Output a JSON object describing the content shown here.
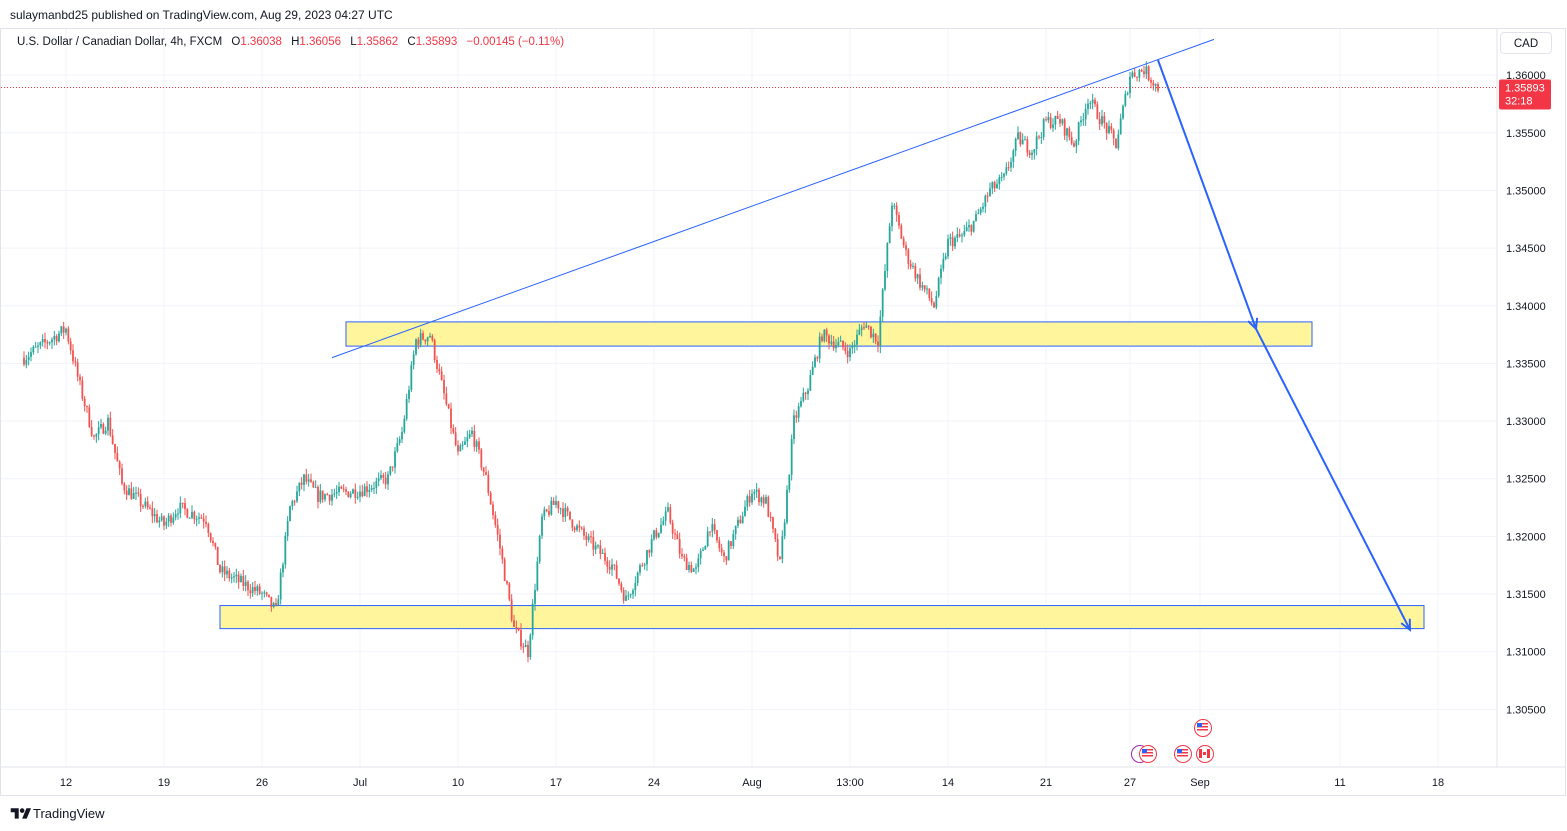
{
  "header": {
    "published": "sulaymanbd25 published on TradingView.com, Aug 29, 2023 04:27 UTC"
  },
  "legend": {
    "symbol": "U.S. Dollar / Canadian Dollar, 4h, FXCM",
    "o_label": "O",
    "o_value": "1.36038",
    "h_label": "H",
    "h_value": "1.36056",
    "l_label": "L",
    "l_value": "1.35862",
    "c_label": "C",
    "c_value": "1.35893",
    "change": "−0.00145 (−0.11%)"
  },
  "currency": "CAD",
  "footer": {
    "brand": "TradingView"
  },
  "colors": {
    "up": "#26a69a",
    "down": "#ef5350",
    "accent": "#2962ff",
    "zone_fill": "#fff59d",
    "last_price_bg": "#f23645"
  },
  "chart_data": {
    "type": "candlestick",
    "title": "U.S. Dollar / Canadian Dollar, 4h, FXCM",
    "ylim": [
      1.3,
      1.364
    ],
    "y_ticks": [
      "1.36000",
      "1.35500",
      "1.35000",
      "1.34500",
      "1.34000",
      "1.33500",
      "1.33000",
      "1.32500",
      "1.32000",
      "1.31500",
      "1.31000",
      "1.30500"
    ],
    "x_ticks": [
      "12",
      "19",
      "26",
      "Jul",
      "10",
      "17",
      "24",
      "Aug",
      "13:00",
      "14",
      "21",
      "27",
      "Sep",
      "11",
      "18"
    ],
    "x_axis_start": "2023-06-08",
    "last_price": {
      "value": "1.35893",
      "countdown": "32:18"
    },
    "close_path": [
      [
        "2023-06-09",
        1.3355
      ],
      [
        "2023-06-12",
        1.338
      ],
      [
        "2023-06-13",
        1.333
      ],
      [
        "2023-06-14",
        1.3285
      ],
      [
        "2023-06-15",
        1.33
      ],
      [
        "2023-06-16",
        1.3245
      ],
      [
        "2023-06-19",
        1.321
      ],
      [
        "2023-06-20",
        1.3225
      ],
      [
        "2023-06-22",
        1.3215
      ],
      [
        "2023-06-23",
        1.317
      ],
      [
        "2023-06-26",
        1.315
      ],
      [
        "2023-06-27",
        1.3135
      ],
      [
        "2023-06-28",
        1.3225
      ],
      [
        "2023-06-29",
        1.325
      ],
      [
        "2023-06-30",
        1.3235
      ],
      [
        "2023-07-03",
        1.324
      ],
      [
        "2023-07-05",
        1.325
      ],
      [
        "2023-07-06",
        1.329
      ],
      [
        "2023-07-07",
        1.337
      ],
      [
        "2023-07-08",
        1.3375
      ],
      [
        "2023-07-10",
        1.327
      ],
      [
        "2023-07-11",
        1.329
      ],
      [
        "2023-07-12",
        1.325
      ],
      [
        "2023-07-13",
        1.319
      ],
      [
        "2023-07-14",
        1.312
      ],
      [
        "2023-07-15",
        1.31
      ],
      [
        "2023-07-16",
        1.3215
      ],
      [
        "2023-07-17",
        1.323
      ],
      [
        "2023-07-19",
        1.32
      ],
      [
        "2023-07-21",
        1.3175
      ],
      [
        "2023-07-22",
        1.3145
      ],
      [
        "2023-07-24",
        1.32
      ],
      [
        "2023-07-25",
        1.322
      ],
      [
        "2023-07-26",
        1.318
      ],
      [
        "2023-07-27",
        1.317
      ],
      [
        "2023-07-28",
        1.321
      ],
      [
        "2023-07-29",
        1.318
      ],
      [
        "2023-07-31",
        1.324
      ],
      [
        "2023-08-01",
        1.323
      ],
      [
        "2023-08-02",
        1.3175
      ],
      [
        "2023-08-03",
        1.33
      ],
      [
        "2023-08-04",
        1.333
      ],
      [
        "2023-08-05",
        1.3375
      ],
      [
        "2023-08-07",
        1.336
      ],
      [
        "2023-08-08",
        1.3385
      ],
      [
        "2023-08-09",
        1.337
      ],
      [
        "2023-08-10",
        1.349
      ],
      [
        "2023-08-11",
        1.3445
      ],
      [
        "2023-08-12",
        1.342
      ],
      [
        "2023-08-13",
        1.34
      ],
      [
        "2023-08-14",
        1.3455
      ],
      [
        "2023-08-15",
        1.346
      ],
      [
        "2023-08-16",
        1.3475
      ],
      [
        "2023-08-17",
        1.35
      ],
      [
        "2023-08-18",
        1.351
      ],
      [
        "2023-08-19",
        1.3545
      ],
      [
        "2023-08-20",
        1.3535
      ],
      [
        "2023-08-21",
        1.356
      ],
      [
        "2023-08-22",
        1.356
      ],
      [
        "2023-08-23",
        1.354
      ],
      [
        "2023-08-24",
        1.358
      ],
      [
        "2023-08-25",
        1.356
      ],
      [
        "2023-08-26",
        1.354
      ],
      [
        "2023-08-27",
        1.36
      ],
      [
        "2023-08-28",
        1.3605
      ],
      [
        "2023-08-29",
        1.3589
      ]
    ],
    "trend_line": [
      [
        "2023-07-01",
        1.3355
      ],
      [
        "2023-09-02",
        1.3631
      ]
    ],
    "zones": [
      {
        "x_start": "2023-07-02",
        "x_end": "2023-09-09",
        "y_low": 1.3365,
        "y_high": 1.3386
      },
      {
        "x_start": "2023-06-23",
        "x_end": "2023-09-17",
        "y_low": 1.312,
        "y_high": 1.314
      }
    ],
    "projection_arrow": [
      [
        "2023-08-29",
        1.3613
      ],
      [
        "2023-09-05",
        1.338
      ],
      [
        "2023-09-16",
        1.3119
      ]
    ]
  }
}
